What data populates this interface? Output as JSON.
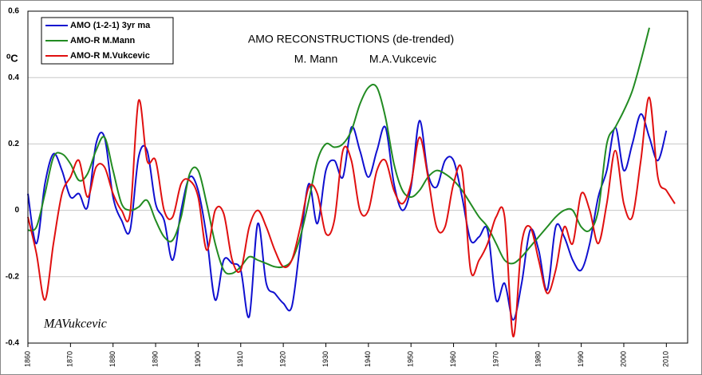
{
  "chart_data": {
    "type": "line",
    "title": "AMO RECONSTRUCTIONS (de-trended)",
    "subtitles": [
      {
        "text": "M. Mann",
        "color": "#228b22"
      },
      {
        "text": "M.A.Vukcevic",
        "color": "#e01010"
      }
    ],
    "ylabel": "⁰C",
    "annotation": "MAVukcevic",
    "xlim": [
      1860,
      2015
    ],
    "xticks": [
      1860,
      1870,
      1880,
      1890,
      1900,
      1910,
      1920,
      1930,
      1940,
      1950,
      1960,
      1970,
      1980,
      1990,
      2000,
      2010
    ],
    "ylim": [
      -0.4,
      0.6
    ],
    "yticks": [
      -0.4,
      -0.2,
      0,
      0.2,
      0.4,
      0.6
    ],
    "grid": true,
    "legend": "top-left",
    "series": [
      {
        "name": "AMO (1-2-1) 3yr ma",
        "color": "#1010d0",
        "x": [
          1860,
          1862,
          1864,
          1866,
          1868,
          1870,
          1872,
          1874,
          1876,
          1878,
          1880,
          1882,
          1884,
          1886,
          1888,
          1890,
          1892,
          1894,
          1896,
          1898,
          1900,
          1902,
          1904,
          1906,
          1908,
          1910,
          1912,
          1914,
          1916,
          1918,
          1920,
          1922,
          1924,
          1926,
          1928,
          1930,
          1932,
          1934,
          1936,
          1938,
          1940,
          1942,
          1944,
          1946,
          1948,
          1950,
          1952,
          1954,
          1956,
          1958,
          1960,
          1962,
          1964,
          1966,
          1968,
          1970,
          1972,
          1974,
          1976,
          1978,
          1980,
          1982,
          1984,
          1986,
          1988,
          1990,
          1992,
          1994,
          1996,
          1998,
          2000,
          2002,
          2004,
          2006,
          2008,
          2010
        ],
        "values": [
          0.05,
          -0.1,
          0.08,
          0.17,
          0.12,
          0.04,
          0.05,
          0.01,
          0.2,
          0.22,
          0.04,
          -0.03,
          -0.06,
          0.16,
          0.18,
          0.02,
          -0.03,
          -0.15,
          0.0,
          0.1,
          0.06,
          -0.08,
          -0.27,
          -0.15,
          -0.16,
          -0.18,
          -0.32,
          -0.04,
          -0.22,
          -0.25,
          -0.28,
          -0.29,
          -0.1,
          0.08,
          -0.04,
          0.12,
          0.15,
          0.1,
          0.25,
          0.18,
          0.1,
          0.18,
          0.25,
          0.08,
          0.0,
          0.07,
          0.27,
          0.11,
          0.07,
          0.15,
          0.15,
          0.04,
          -0.09,
          -0.08,
          -0.06,
          -0.27,
          -0.22,
          -0.33,
          -0.22,
          -0.06,
          -0.12,
          -0.24,
          -0.05,
          -0.08,
          -0.15,
          -0.18,
          -0.1,
          0.04,
          0.12,
          0.25,
          0.12,
          0.2,
          0.29,
          0.22,
          0.15,
          0.24
        ]
      },
      {
        "name": "AMO-R M.Mann",
        "color": "#228b22",
        "x": [
          1860,
          1862,
          1864,
          1866,
          1868,
          1870,
          1872,
          1874,
          1876,
          1878,
          1880,
          1882,
          1884,
          1886,
          1888,
          1890,
          1892,
          1894,
          1896,
          1898,
          1900,
          1902,
          1904,
          1906,
          1908,
          1910,
          1912,
          1914,
          1916,
          1918,
          1920,
          1922,
          1924,
          1926,
          1928,
          1930,
          1932,
          1934,
          1936,
          1938,
          1940,
          1942,
          1944,
          1946,
          1948,
          1950,
          1952,
          1954,
          1956,
          1958,
          1960,
          1962,
          1964,
          1966,
          1968,
          1970,
          1972,
          1974,
          1976,
          1978,
          1980,
          1982,
          1984,
          1986,
          1988,
          1990,
          1992,
          1994,
          1996,
          1998,
          2000,
          2002,
          2004,
          2006
        ],
        "values": [
          -0.06,
          -0.05,
          0.05,
          0.16,
          0.17,
          0.14,
          0.09,
          0.11,
          0.18,
          0.22,
          0.12,
          0.02,
          0.0,
          0.01,
          0.03,
          -0.03,
          -0.08,
          -0.09,
          -0.02,
          0.11,
          0.12,
          0.02,
          -0.1,
          -0.18,
          -0.19,
          -0.17,
          -0.14,
          -0.15,
          -0.16,
          -0.17,
          -0.17,
          -0.15,
          -0.08,
          0.03,
          0.15,
          0.2,
          0.19,
          0.2,
          0.24,
          0.32,
          0.37,
          0.37,
          0.28,
          0.14,
          0.06,
          0.04,
          0.06,
          0.1,
          0.12,
          0.11,
          0.09,
          0.06,
          0.02,
          -0.02,
          -0.05,
          -0.1,
          -0.15,
          -0.16,
          -0.14,
          -0.11,
          -0.08,
          -0.05,
          -0.02,
          0.0,
          0.0,
          -0.05,
          -0.06,
          0.0,
          0.2,
          0.25,
          0.3,
          0.36,
          0.45,
          0.55
        ]
      },
      {
        "name": "AMO-R M.Vukcevic",
        "color": "#e01010",
        "x": [
          1860,
          1862,
          1864,
          1866,
          1868,
          1870,
          1872,
          1874,
          1876,
          1878,
          1880,
          1882,
          1884,
          1886,
          1888,
          1890,
          1892,
          1894,
          1896,
          1898,
          1900,
          1902,
          1904,
          1906,
          1908,
          1910,
          1912,
          1914,
          1916,
          1918,
          1920,
          1922,
          1924,
          1926,
          1928,
          1930,
          1932,
          1934,
          1936,
          1938,
          1940,
          1942,
          1944,
          1946,
          1948,
          1950,
          1952,
          1954,
          1956,
          1958,
          1960,
          1962,
          1964,
          1966,
          1968,
          1970,
          1972,
          1974,
          1976,
          1978,
          1980,
          1982,
          1984,
          1986,
          1988,
          1990,
          1992,
          1994,
          1996,
          1998,
          2000,
          2002,
          2004,
          2006,
          2008,
          2010,
          2012
        ],
        "values": [
          -0.02,
          -0.13,
          -0.27,
          -0.1,
          0.05,
          0.1,
          0.15,
          0.04,
          0.13,
          0.13,
          0.05,
          0.0,
          -0.01,
          0.33,
          0.15,
          0.15,
          0.0,
          -0.02,
          0.08,
          0.09,
          0.04,
          -0.12,
          0.0,
          -0.01,
          -0.15,
          -0.18,
          -0.05,
          0.0,
          -0.05,
          -0.12,
          -0.17,
          -0.15,
          -0.05,
          0.07,
          0.05,
          -0.07,
          -0.03,
          0.18,
          0.15,
          0.0,
          0.0,
          0.12,
          0.15,
          0.06,
          0.02,
          0.08,
          0.22,
          0.1,
          -0.05,
          -0.05,
          0.08,
          0.12,
          -0.18,
          -0.15,
          -0.1,
          -0.02,
          -0.02,
          -0.38,
          -0.1,
          -0.05,
          -0.15,
          -0.25,
          -0.18,
          -0.05,
          -0.1,
          0.05,
          0.0,
          -0.1,
          0.02,
          0.18,
          0.02,
          -0.02,
          0.15,
          0.34,
          0.1,
          0.06,
          0.02
        ]
      }
    ]
  }
}
